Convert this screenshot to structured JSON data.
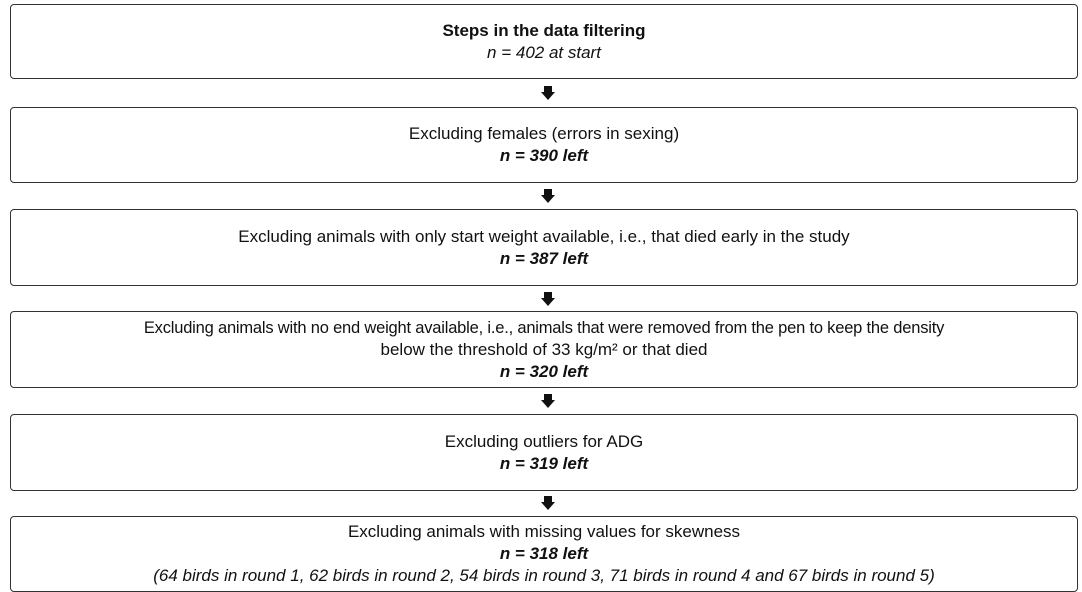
{
  "steps": [
    {
      "lines": [
        "Steps in the data filtering",
        "n = 402 at start"
      ]
    },
    {
      "lines": [
        "Excluding females (errors in sexing)",
        "n = 390 left"
      ]
    },
    {
      "lines": [
        "Excluding animals with only start weight available, i.e., that died early in the study",
        "n = 387 left"
      ]
    },
    {
      "lines": [
        "Excluding animals with no end weight available, i.e., animals that were removed from the pen to keep the density",
        "below the threshold of 33 kg/m² or that died",
        "n = 320 left"
      ]
    },
    {
      "lines": [
        "Excluding outliers for ADG",
        "n = 319 left"
      ]
    },
    {
      "lines": [
        "Excluding animals with missing values for skewness",
        "n = 318 left",
        "(64 birds in round 1, 62 birds in round 2, 54 birds in round 3, 71 birds in round 4 and 67 birds in round 5)"
      ]
    }
  ]
}
